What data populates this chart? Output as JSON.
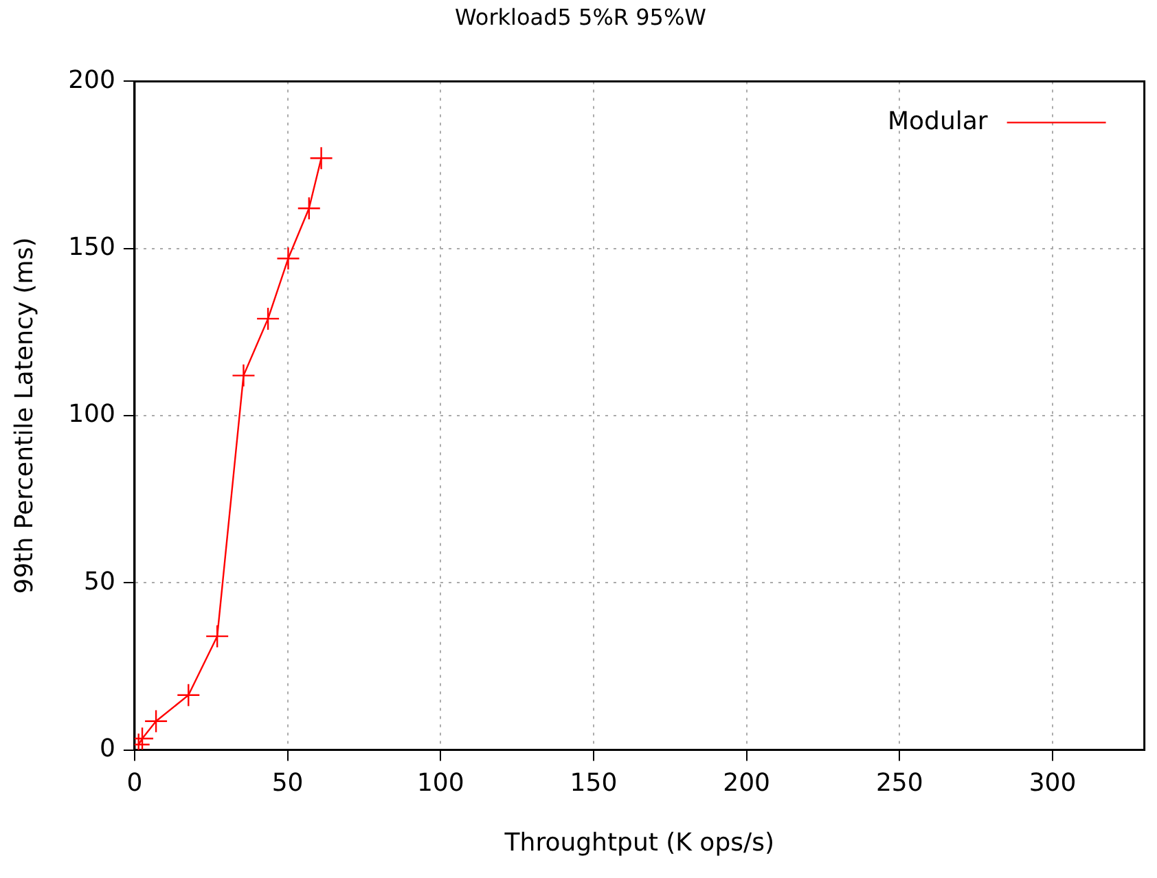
{
  "chart_data": {
    "type": "line",
    "title": "Workload5 5%R 95%W",
    "xlabel": "Throughtput (K ops/s)",
    "ylabel": "99th Percentile Latency (ms)",
    "series": [
      {
        "name": "Modular",
        "color": "#ff0000",
        "x": [
          1.3,
          2.5,
          7,
          17.6,
          27,
          35.6,
          43.6,
          50.2,
          57,
          61
        ],
        "values": [
          1.6,
          3.4,
          8.6,
          16.4,
          34,
          112,
          129,
          147,
          162,
          177
        ]
      }
    ],
    "xlim": [
      0,
      330
    ],
    "xticks": [
      0,
      50,
      100,
      150,
      200,
      250,
      300
    ],
    "ylim": [
      0,
      200
    ],
    "yticks": [
      0,
      50,
      100,
      150,
      200
    ],
    "grid": true,
    "legend": "top right",
    "marker": "cross",
    "line_style": "solid"
  }
}
